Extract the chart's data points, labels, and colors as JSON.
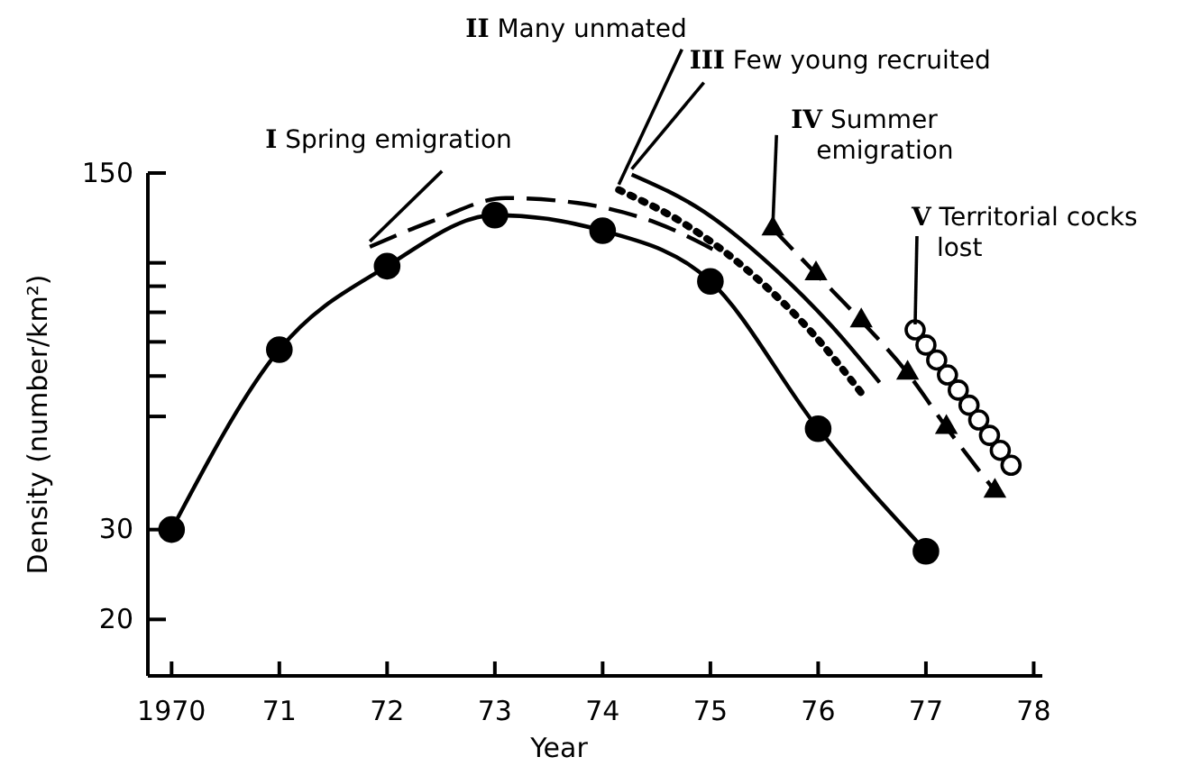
{
  "chart_data": {
    "type": "line",
    "xlabel": "Year",
    "ylabel": "Density (number/km²)",
    "log": "y",
    "grid": false,
    "xlim": [
      1969.78,
      1978.08
    ],
    "xticks": [
      {
        "value": 1970,
        "label": "1970"
      },
      {
        "value": 1971,
        "label": "71"
      },
      {
        "value": 1972,
        "label": "72"
      },
      {
        "value": 1973,
        "label": "73"
      },
      {
        "value": 1974,
        "label": "74"
      },
      {
        "value": 1975,
        "label": "75"
      },
      {
        "value": 1976,
        "label": "76"
      },
      {
        "value": 1977,
        "label": "77"
      },
      {
        "value": 1978,
        "label": "78"
      }
    ],
    "ylim": [
      15.5,
      150
    ],
    "yticks": [
      20,
      30,
      {
        "value": 50,
        "label": null
      },
      {
        "value": 60,
        "label": null
      },
      {
        "value": 70,
        "label": null
      },
      {
        "value": 80,
        "label": null
      },
      {
        "value": 90,
        "label": null
      },
      {
        "value": 100,
        "label": null
      },
      150
    ],
    "series": [
      {
        "color": "#000000",
        "marker": "circle",
        "line_style": "solid",
        "x": [
          1970,
          1971,
          1972,
          1973,
          1974,
          1975,
          1976,
          1977
        ],
        "values": [
          30,
          67.6,
          98.5,
          124,
          115.6,
          92,
          47.3,
          27.2
        ]
      },
      {
        "color": "#000000",
        "marker": "none",
        "line_style": "dashed",
        "x": [
          1971.84,
          1972.43,
          1973.1,
          1973.77,
          1974.49,
          1975.11
        ],
        "values": [
          107.5,
          121,
          134,
          131,
          120,
          104
        ]
      },
      {
        "color": "#000000",
        "marker": "none",
        "line_style": "dotted",
        "x": [
          1974.15,
          1974.77,
          1975.44,
          1975.95,
          1976.4
        ],
        "values": [
          139,
          118.9,
          92.9,
          72.7,
          55.6
        ]
      },
      {
        "color": "#000000",
        "marker": "none",
        "line_style": "solid",
        "x": [
          1974.27,
          1974.94,
          1975.61,
          1976.11,
          1976.57
        ],
        "values": [
          149,
          126,
          96.7,
          75.8,
          58.3
        ]
      },
      {
        "color": "#000000",
        "marker": "triangle",
        "line_style": "dashed",
        "x": [
          1975.58,
          1975.98,
          1976.4,
          1976.83,
          1977.19,
          1977.64
        ],
        "values": [
          116.6,
          95.2,
          77,
          60.8,
          47.6,
          35.7
        ]
      },
      {
        "type": "scatter",
        "color": "#000000",
        "marker": "circle",
        "x": [
          1976.9,
          1977,
          1977.1,
          1977.2,
          1977.3,
          1977.4,
          1977.49,
          1977.59,
          1977.69,
          1977.79
        ],
        "values": [
          73.9,
          69,
          64.5,
          60.3,
          56.3,
          52.6,
          49.2,
          45.9,
          42.9,
          40.1
        ]
      }
    ],
    "annotations": [
      {
        "text": "I Spring emigration",
        "x": 1971.84,
        "y": 107.5
      },
      {
        "text": "II Many unmated",
        "x": 1974.15,
        "y": 139
      },
      {
        "text": "III Few young recruited",
        "x": 1974.27,
        "y": 149
      },
      {
        "text": "IV Summer emigration",
        "x": 1975.58,
        "y": 116.6
      },
      {
        "text": "V Territorial cocks lost",
        "x": 1976.9,
        "y": 73.9
      }
    ]
  }
}
